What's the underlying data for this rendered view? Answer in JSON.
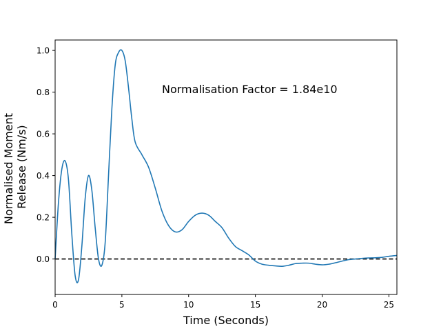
{
  "chart_data": {
    "type": "line",
    "title": "",
    "xlabel": "Time (Seconds)",
    "ylabel_lines": [
      "Normalised Moment",
      "Release (Nm/s)"
    ],
    "annotation": "Normalisation Factor = 1.84e10",
    "xlim": [
      0,
      25.6
    ],
    "ylim": [
      -0.17,
      1.05
    ],
    "xticks": [
      0,
      5,
      10,
      15,
      20,
      25
    ],
    "yticks": [
      0.0,
      0.2,
      0.4,
      0.6,
      0.8,
      1.0
    ],
    "xtick_labels": [
      "0",
      "5",
      "10",
      "15",
      "20",
      "25"
    ],
    "ytick_labels": [
      "0.0",
      "0.2",
      "0.4",
      "0.6",
      "0.8",
      "1.0"
    ],
    "grid": false,
    "reference_line": {
      "y": 0,
      "style": "dashed",
      "color": "#000000"
    },
    "series": [
      {
        "color": "#1f77b4",
        "x": [
          0,
          0.25,
          0.5,
          0.75,
          1.0,
          1.25,
          1.5,
          1.75,
          2.0,
          2.25,
          2.5,
          2.75,
          3.0,
          3.25,
          3.5,
          3.75,
          4.0,
          4.25,
          4.5,
          4.75,
          5.0,
          5.25,
          5.5,
          5.75,
          6.0,
          6.5,
          7.0,
          7.5,
          8.0,
          8.5,
          9.0,
          9.5,
          10.0,
          10.5,
          11.0,
          11.5,
          12.0,
          12.5,
          13.0,
          13.5,
          14.0,
          14.5,
          15.0,
          15.5,
          16.0,
          16.5,
          17.0,
          17.5,
          18.0,
          18.5,
          19.0,
          19.5,
          20.0,
          20.5,
          21.0,
          21.5,
          22.0,
          22.5,
          23.0,
          23.5,
          24.0,
          24.5,
          25.0,
          25.6
        ],
        "y": [
          0.0,
          0.27,
          0.43,
          0.47,
          0.38,
          0.12,
          -0.08,
          -0.1,
          0.06,
          0.29,
          0.4,
          0.33,
          0.15,
          0.0,
          -0.03,
          0.08,
          0.4,
          0.72,
          0.93,
          0.99,
          1.0,
          0.95,
          0.82,
          0.67,
          0.56,
          0.5,
          0.44,
          0.34,
          0.23,
          0.16,
          0.13,
          0.14,
          0.18,
          0.21,
          0.22,
          0.21,
          0.18,
          0.15,
          0.1,
          0.06,
          0.04,
          0.02,
          -0.01,
          -0.025,
          -0.03,
          -0.033,
          -0.035,
          -0.03,
          -0.022,
          -0.02,
          -0.02,
          -0.025,
          -0.028,
          -0.025,
          -0.018,
          -0.01,
          -0.003,
          0.0,
          0.003,
          0.005,
          0.006,
          0.008,
          0.013,
          0.017
        ]
      }
    ]
  }
}
